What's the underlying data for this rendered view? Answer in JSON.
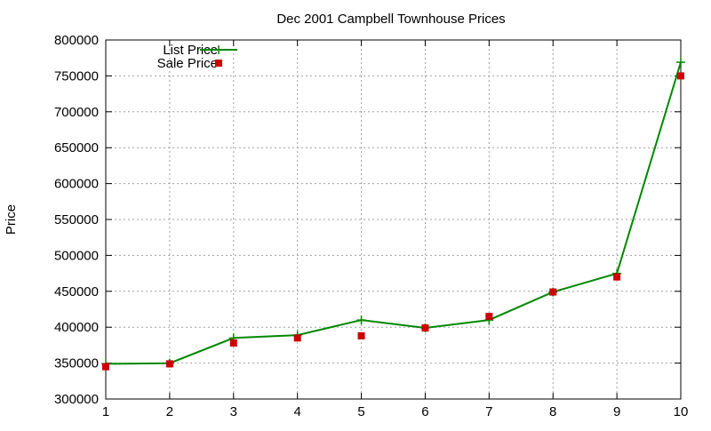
{
  "chart_data": {
    "type": "line",
    "title": "Dec 2001 Campbell Townhouse Prices",
    "xlabel": "",
    "ylabel": "Price",
    "xlim": [
      1,
      10
    ],
    "ylim": [
      300000,
      800000
    ],
    "x_ticks": [
      "1",
      "2",
      "3",
      "4",
      "5",
      "6",
      "7",
      "8",
      "9",
      "10"
    ],
    "y_ticks": [
      "300000",
      "350000",
      "400000",
      "450000",
      "500000",
      "550000",
      "600000",
      "650000",
      "700000",
      "750000",
      "800000"
    ],
    "grid": true,
    "legend_position": "top-left",
    "x": [
      1,
      2,
      3,
      4,
      5,
      6,
      7,
      8,
      9,
      10
    ],
    "series": [
      {
        "name": "List Price",
        "style": "line with plus markers",
        "color": "#008800",
        "values": [
          349000,
          349900,
          385000,
          389000,
          410000,
          399000,
          410000,
          449000,
          474900,
          769000
        ]
      },
      {
        "name": "Sale Price",
        "style": "square markers",
        "color": "#cc0000",
        "values": [
          345000,
          349000,
          378000,
          385000,
          388000,
          399000,
          415000,
          449000,
          470000,
          750000
        ]
      }
    ]
  }
}
